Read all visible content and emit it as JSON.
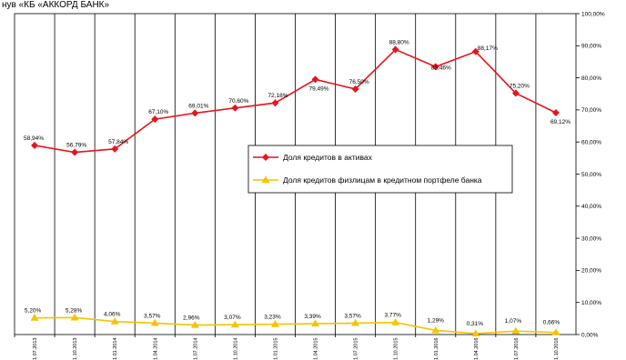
{
  "chart_data": {
    "type": "line",
    "title": "нув «КБ «АККОРД БАНК»",
    "categories": [
      "1.07.2013",
      "1.10.2013",
      "1.01.2014",
      "1.04.2014",
      "1.07.2014",
      "1.10.2014",
      "1.01.2015",
      "1.04.2015",
      "1.07.2015",
      "1.10.2015",
      "1.01.2016",
      "1.04.2016",
      "1.07.2016",
      "1.10.2016"
    ],
    "series": [
      {
        "name": "Доля кредитов в активах",
        "color": "#e8141c",
        "marker": "diamond",
        "values": [
          58.94,
          56.79,
          57.84,
          67.1,
          69.01,
          70.6,
          72.18,
          79.49,
          76.5,
          88.8,
          83.46,
          88.17,
          75.2,
          69.12
        ],
        "labels": [
          "58,94%",
          "56,79%",
          "57,84%",
          "67,10%",
          "69,01%",
          "70,60%",
          "72,18%",
          "79,49%",
          "76,50%",
          "88,80%",
          "83,46%",
          "88,17%",
          "75,20%",
          "69,12%"
        ]
      },
      {
        "name": "Доля кредитов физлицам в кредитном портфеле банка",
        "color": "#f5c400",
        "marker": "triangle",
        "values": [
          5.2,
          5.28,
          4.06,
          3.57,
          2.96,
          3.07,
          3.23,
          3.39,
          3.57,
          3.77,
          1.29,
          0.31,
          1.07,
          0.66
        ],
        "labels": [
          "5,20%",
          "5,28%",
          "4,06%",
          "3,57%",
          "2,96%",
          "3,07%",
          "3,23%",
          "3,39%",
          "3,57%",
          "3,77%",
          "1,29%",
          "0,31%",
          "1,07%",
          "0,66%"
        ]
      }
    ],
    "ylim": [
      0,
      100
    ],
    "yticks": [
      "0,00%",
      "10,00%",
      "20,00%",
      "30,00%",
      "40,00%",
      "50,00%",
      "60,00%",
      "70,00%",
      "80,00%",
      "90,00%",
      "100,00%"
    ],
    "y_axis_side": "right",
    "grid": "vertical",
    "legend_position": "center-right"
  }
}
